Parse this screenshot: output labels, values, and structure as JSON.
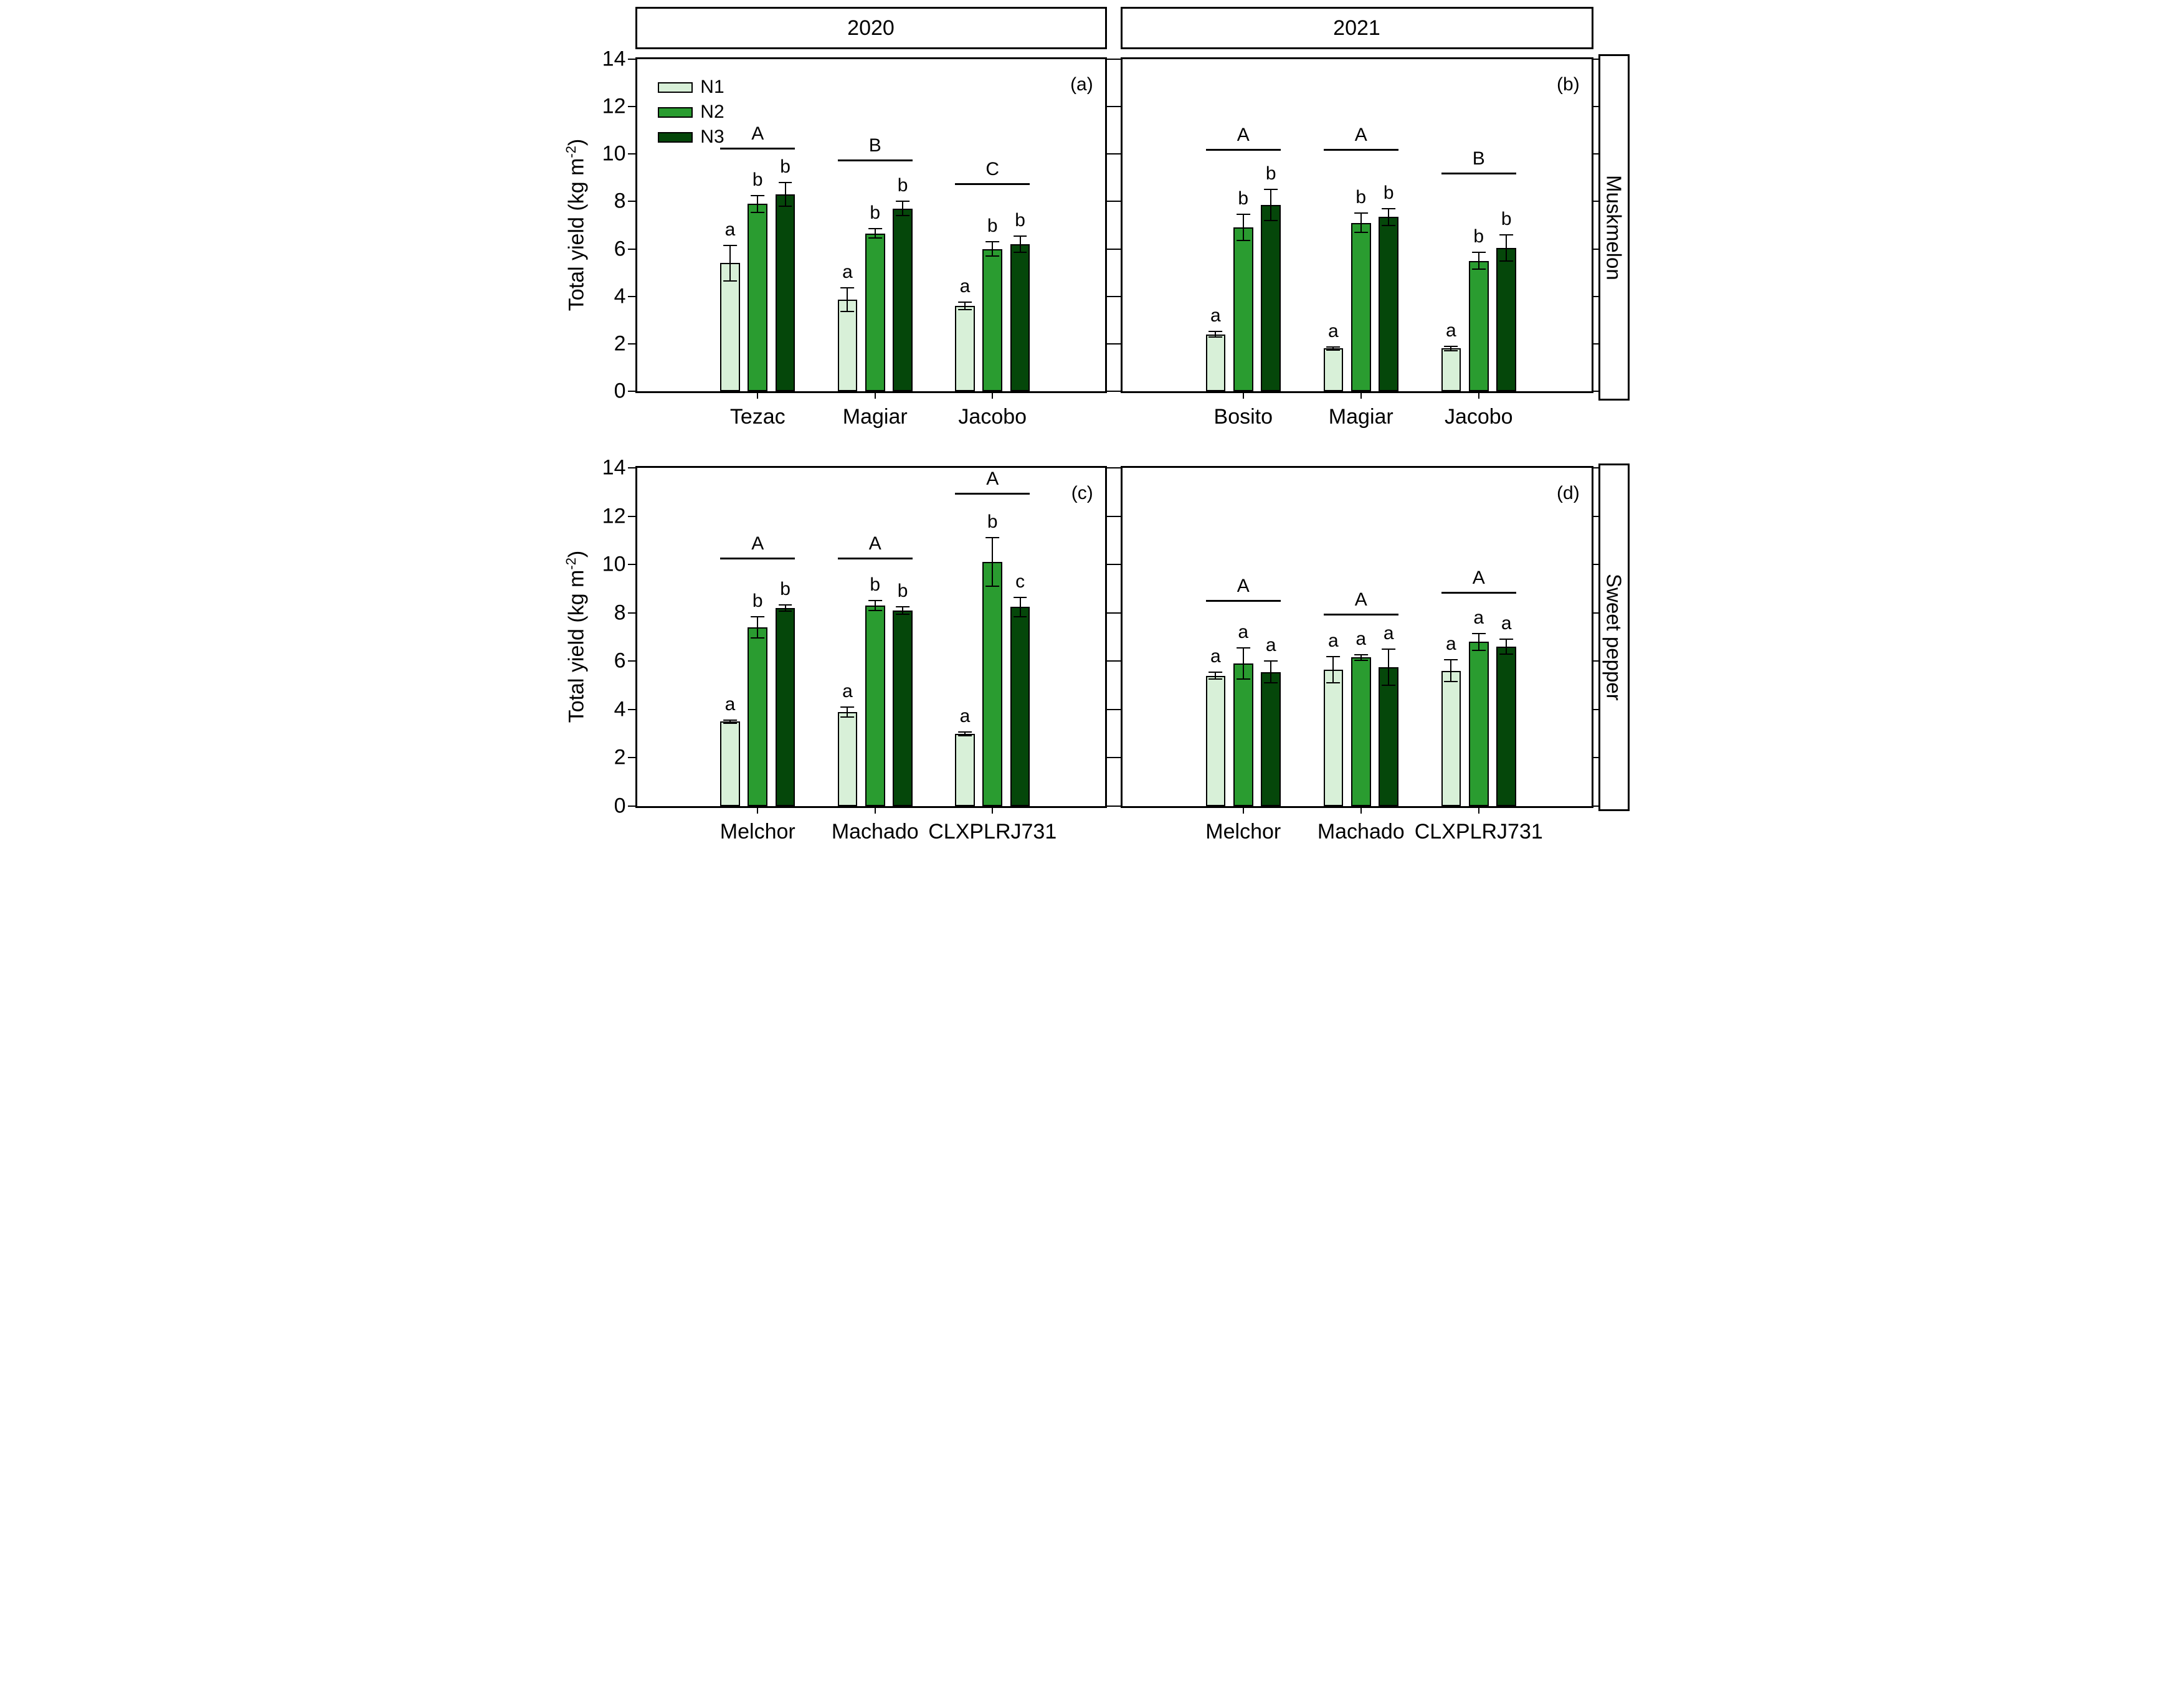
{
  "headers": [
    "2020",
    "2021"
  ],
  "row_labels": [
    "Muskmelon",
    "Sweet pepper"
  ],
  "y_axis": {
    "title_prefix": "Total yield (kg m",
    "title_sup": "-2",
    "title_suffix": ")"
  },
  "legend": {
    "entries": [
      "N1",
      "N2",
      "N3"
    ]
  },
  "colors": {
    "N1": "#d8f0d8",
    "N2": "#2a9c30",
    "N3": "#05470a",
    "axis": "#000000",
    "background": "#ffffff"
  },
  "chart_data": [
    {
      "type": "bar",
      "panel_label": "(a)",
      "year": "2020",
      "row_label": "Muskmelon",
      "title": "Total yield 2020 Muskmelon",
      "xlabel": "",
      "ylabel": "Total yield (kg m-2)",
      "ylim": [
        0,
        14
      ],
      "yticks": [
        0,
        2,
        4,
        6,
        8,
        10,
        12,
        14
      ],
      "show_ytick_labels": true,
      "show_legend": true,
      "categories": [
        "Tezac",
        "Magiar",
        "Jacobo"
      ],
      "series": [
        {
          "name": "N1",
          "values": [
            5.4,
            3.85,
            3.6
          ],
          "errors": [
            0.75,
            0.5,
            0.15
          ],
          "letters": [
            "a",
            "a",
            "a"
          ]
        },
        {
          "name": "N2",
          "values": [
            7.9,
            6.65,
            6.0
          ],
          "errors": [
            0.35,
            0.2,
            0.3
          ],
          "letters": [
            "b",
            "b",
            "b"
          ]
        },
        {
          "name": "N3",
          "values": [
            8.3,
            7.7,
            6.2
          ],
          "errors": [
            0.5,
            0.3,
            0.35
          ],
          "letters": [
            "b",
            "b",
            "b"
          ]
        }
      ],
      "groups": [
        {
          "letter": "A",
          "line_y": 10.2
        },
        {
          "letter": "B",
          "line_y": 9.7
        },
        {
          "letter": "C",
          "line_y": 8.7
        }
      ]
    },
    {
      "type": "bar",
      "panel_label": "(b)",
      "year": "2021",
      "row_label": "Muskmelon",
      "title": "Total yield 2021 Muskmelon",
      "xlabel": "",
      "ylabel": "Total yield (kg m-2)",
      "ylim": [
        0,
        14
      ],
      "yticks": [
        0,
        2,
        4,
        6,
        8,
        10,
        12,
        14
      ],
      "show_ytick_labels": false,
      "show_legend": false,
      "categories": [
        "Bosito",
        "Magiar",
        "Jacobo"
      ],
      "series": [
        {
          "name": "N1",
          "values": [
            2.4,
            1.8,
            1.8
          ],
          "errors": [
            0.12,
            0.07,
            0.1
          ],
          "letters": [
            "a",
            "a",
            "a"
          ]
        },
        {
          "name": "N2",
          "values": [
            6.9,
            7.1,
            5.5
          ],
          "errors": [
            0.55,
            0.4,
            0.35
          ],
          "letters": [
            "b",
            "b",
            "b"
          ]
        },
        {
          "name": "N3",
          "values": [
            7.85,
            7.35,
            6.05
          ],
          "errors": [
            0.65,
            0.35,
            0.55
          ],
          "letters": [
            "b",
            "b",
            "b"
          ]
        }
      ],
      "groups": [
        {
          "letter": "A",
          "line_y": 10.15
        },
        {
          "letter": "A",
          "line_y": 10.15
        },
        {
          "letter": "B",
          "line_y": 9.15
        }
      ]
    },
    {
      "type": "bar",
      "panel_label": "(c)",
      "year": "2020",
      "row_label": "Sweet pepper",
      "title": "Total yield 2020 Sweet pepper",
      "xlabel": "",
      "ylabel": "Total yield (kg m-2)",
      "ylim": [
        0,
        14
      ],
      "yticks": [
        0,
        2,
        4,
        6,
        8,
        10,
        12,
        14
      ],
      "show_ytick_labels": true,
      "show_legend": false,
      "categories": [
        "Melchor",
        "Machado",
        "CLXPLRJ731"
      ],
      "series": [
        {
          "name": "N1",
          "values": [
            3.5,
            3.9,
            3.0
          ],
          "errors": [
            0.07,
            0.2,
            0.08
          ],
          "letters": [
            "a",
            "a",
            "a"
          ]
        },
        {
          "name": "N2",
          "values": [
            7.4,
            8.3,
            10.1
          ],
          "errors": [
            0.45,
            0.2,
            1.0
          ],
          "letters": [
            "b",
            "b",
            "b"
          ]
        },
        {
          "name": "N3",
          "values": [
            8.2,
            8.1,
            8.25
          ],
          "errors": [
            0.12,
            0.15,
            0.4
          ],
          "letters": [
            "b",
            "b",
            "c"
          ]
        }
      ],
      "groups": [
        {
          "letter": "A",
          "line_y": 10.2
        },
        {
          "letter": "A",
          "line_y": 10.2
        },
        {
          "letter": "A",
          "line_y": 12.9
        }
      ]
    },
    {
      "type": "bar",
      "panel_label": "(d)",
      "year": "2021",
      "row_label": "Sweet pepper",
      "title": "Total yield 2021 Sweet pepper",
      "xlabel": "",
      "ylabel": "Total yield (kg m-2)",
      "ylim": [
        0,
        14
      ],
      "yticks": [
        0,
        2,
        4,
        6,
        8,
        10,
        12,
        14
      ],
      "show_ytick_labels": false,
      "show_legend": false,
      "categories": [
        "Melchor",
        "Machado",
        "CLXPLRJ731"
      ],
      "series": [
        {
          "name": "N1",
          "values": [
            5.4,
            5.65,
            5.6
          ],
          "errors": [
            0.15,
            0.55,
            0.45
          ],
          "letters": [
            "a",
            "a",
            "a"
          ]
        },
        {
          "name": "N2",
          "values": [
            5.9,
            6.15,
            6.8
          ],
          "errors": [
            0.65,
            0.12,
            0.35
          ],
          "letters": [
            "a",
            "a",
            "a"
          ]
        },
        {
          "name": "N3",
          "values": [
            5.55,
            5.75,
            6.6
          ],
          "errors": [
            0.45,
            0.75,
            0.3
          ],
          "letters": [
            "a",
            "a",
            "a"
          ]
        }
      ],
      "groups": [
        {
          "letter": "A",
          "line_y": 8.45
        },
        {
          "letter": "A",
          "line_y": 7.9
        },
        {
          "letter": "A",
          "line_y": 8.8
        }
      ]
    }
  ]
}
